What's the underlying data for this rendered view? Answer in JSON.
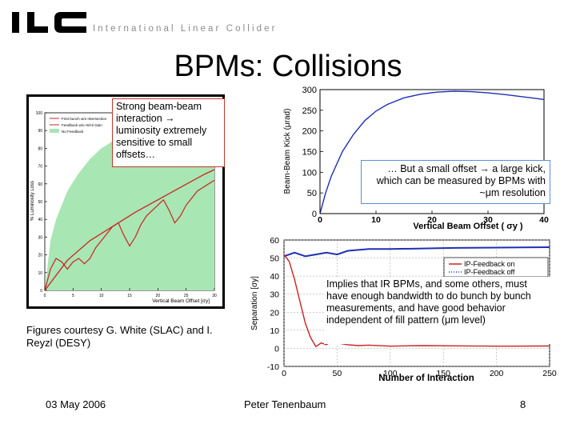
{
  "header": {
    "logo_text": "ILC",
    "logo_subtitle": "International Linear Collider"
  },
  "slide": {
    "title": "BPMs: Collisions"
  },
  "callouts": {
    "strong_interaction": "Strong beam-beam interaction → luminosity extremely sensitive to small offsets…",
    "small_offset": "… But a small offset → a large kick, which can be measured by BPMs with ~μm resolution",
    "implies": "Implies that IR BPMs, and some others, must have enough bandwidth to do bunch by bunch measurements, and have good behavior independent of fill pattern (μm level)",
    "courtesy": "Figures courtesy G. White (SLAC) and I. Reyzl (DESY)"
  },
  "footer": {
    "date": "03 May 2006",
    "author": "Peter Tenenbaum",
    "page": "8"
  },
  "colors": {
    "title": "#000000",
    "green_fill": "#a8e6b4",
    "red_curve": "#cc2222",
    "blue_curve": "#1f2fb3",
    "callout_border_red": "#c0392b",
    "callout_border_blue": "#5b8fd6"
  },
  "chart_data": [
    {
      "type": "line",
      "title": "",
      "xlabel": "Vertical Beam Offset [σy]",
      "ylabel": "% Luminosity Loss",
      "xlim": [
        0,
        30
      ],
      "ylim": [
        0,
        100
      ],
      "xticks": [
        "0",
        "5",
        "10",
        "15",
        "20",
        "25",
        "30"
      ],
      "yticks": [
        "0",
        "10",
        "20",
        "30",
        "40",
        "50",
        "60",
        "70",
        "80",
        "90",
        "100"
      ],
      "legend_position": "top-left",
      "series": [
        {
          "name": "First bunch w/o Intersection",
          "x": [
            0,
            4,
            8,
            12,
            16,
            20,
            24,
            28,
            30
          ],
          "y": [
            0,
            17,
            28,
            36,
            44,
            51,
            58,
            65,
            68
          ]
        },
        {
          "name": "Feedback w/o Hi/Hi Gain",
          "x": [
            0,
            1,
            2,
            3,
            4,
            5,
            6,
            7,
            8,
            9,
            10,
            11,
            12,
            13,
            14,
            15,
            16,
            17,
            18,
            19,
            20,
            21,
            22,
            23,
            24,
            25,
            26,
            27,
            28,
            29,
            30
          ],
          "y": [
            0,
            12,
            18,
            16,
            12,
            16,
            18,
            15,
            18,
            24,
            28,
            32,
            36,
            38,
            31,
            25,
            30,
            37,
            42,
            45,
            48,
            51,
            45,
            38,
            42,
            48,
            52,
            56,
            58,
            60,
            62
          ]
        },
        {
          "name": "No Feedback",
          "x": [
            0,
            1,
            2,
            4,
            6,
            8,
            10,
            13,
            16,
            19,
            22,
            25,
            28,
            30
          ],
          "y": [
            0,
            28,
            40,
            56,
            66,
            74,
            80,
            86,
            90,
            93,
            95,
            97,
            98,
            99
          ]
        }
      ]
    },
    {
      "type": "line",
      "title": "",
      "xlabel": "Vertical Beam Offset ( σy )",
      "ylabel": "Beam-Beam Kick (μrad)",
      "xlim": [
        0,
        40
      ],
      "ylim": [
        0,
        300
      ],
      "xticks": [
        "0",
        "10",
        "20",
        "30",
        "40"
      ],
      "yticks": [
        "0",
        "50",
        "100",
        "150",
        "200",
        "250",
        "300"
      ],
      "series": [
        {
          "name": "",
          "x": [
            0,
            1,
            2,
            4,
            6,
            8,
            10,
            12,
            15,
            18,
            21,
            24,
            27,
            30,
            33,
            36,
            39,
            40
          ],
          "y": [
            0,
            50,
            90,
            150,
            192,
            225,
            248,
            264,
            280,
            289,
            294,
            296,
            295,
            292,
            288,
            283,
            278,
            276
          ]
        }
      ]
    },
    {
      "type": "line",
      "title": "",
      "xlabel": "Number of Interaction",
      "ylabel": "Separation [σy]",
      "xlim": [
        0,
        250
      ],
      "ylim": [
        -10,
        60
      ],
      "xticks": [
        "0",
        "50",
        "100",
        "150",
        "200",
        "250"
      ],
      "yticks": [
        "-10",
        "0",
        "10",
        "20",
        "30",
        "40",
        "50",
        "60"
      ],
      "legend_position": "right",
      "series": [
        {
          "name": "IP-Feedback on",
          "x": [
            0,
            5,
            10,
            15,
            20,
            25,
            30,
            35,
            40,
            45,
            50,
            60,
            70,
            80,
            100,
            130,
            160,
            200,
            250
          ],
          "y": [
            52,
            48,
            38,
            26,
            14,
            6,
            1,
            3,
            2,
            4,
            3,
            2,
            1.5,
            1.8,
            1.2,
            1.5,
            1.4,
            1.2,
            1.3
          ]
        },
        {
          "name": "IP-Feedback off",
          "x": [
            0,
            10,
            20,
            30,
            40,
            50,
            60,
            80,
            100,
            130,
            160,
            200,
            250
          ],
          "y": [
            51,
            53,
            51,
            52,
            53,
            52,
            54,
            55,
            55,
            55.3,
            55.6,
            55.8,
            56
          ]
        }
      ]
    }
  ]
}
